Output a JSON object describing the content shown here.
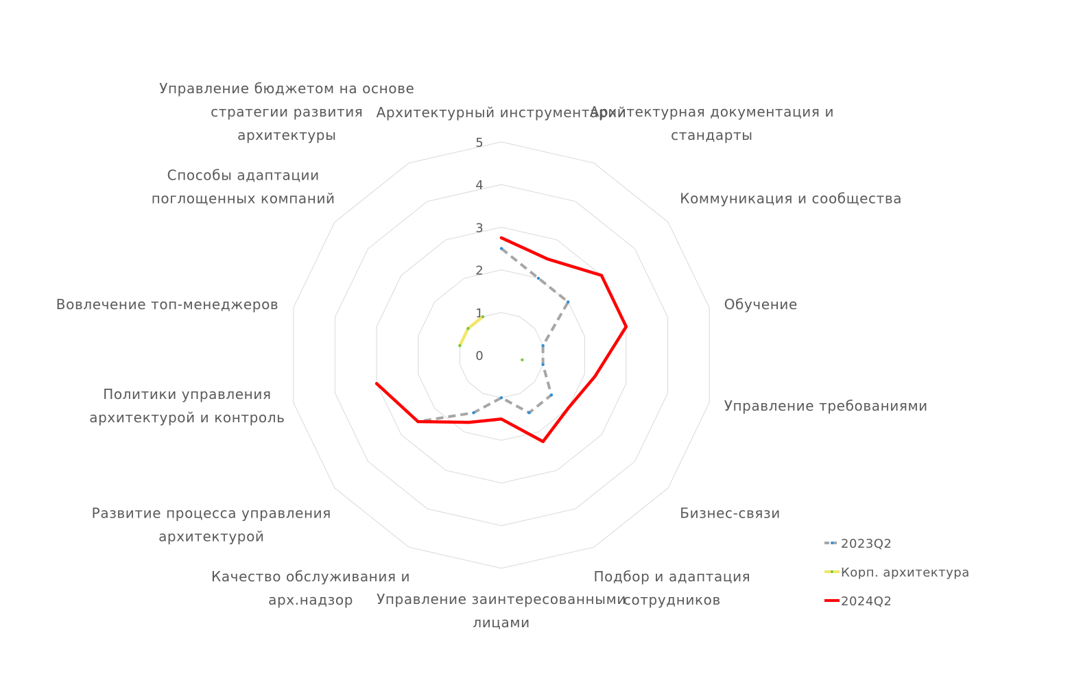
{
  "chart_data": {
    "type": "radar",
    "categories": [
      "Архитектурный инструментарий",
      "Архитектурная документация и стандарты",
      "Коммуникация и сообщества",
      "Обучение",
      "Управление требованиями",
      "Бизнес-связи",
      "Подбор и адаптация сотрудников",
      "Управление заинтересованными лицами",
      "Качество обслуживания и арх.надзор",
      "Развитие процесса управления архитектурой",
      "Политики управления архитектурой и контроль",
      "Вовлечение топ-менеджеров",
      "Способы адаптации поглощенных компаний",
      "Управление бюджетом на основе стратегии развития архитектуры"
    ],
    "category_lines": [
      [
        "Архитектурный инструментарий"
      ],
      [
        "Архитектурная документация и",
        "стандарты"
      ],
      [
        "Коммуникация и сообщества"
      ],
      [
        "Обучение"
      ],
      [
        "Управление требованиями"
      ],
      [
        "Бизнес-связи"
      ],
      [
        "Подбор и адаптация",
        "сотрудников"
      ],
      [
        "Управление заинтересованными",
        "лицами"
      ],
      [
        "Качество обслуживания и",
        "арх.надзор"
      ],
      [
        "Развитие процесса управления",
        "архитектурой"
      ],
      [
        "Политики управления",
        "архитектурой и контроль"
      ],
      [
        "Вовлечение топ-менеджеров"
      ],
      [
        "Способы адаптации",
        "поглощенных компаний"
      ],
      [
        "Управление бюджетом на основе",
        "стратегии развития",
        "архитектуры"
      ]
    ],
    "rlim": [
      0,
      5
    ],
    "ticks": [
      "0",
      "1",
      "2",
      "3",
      "4",
      "5"
    ],
    "grid": true,
    "legend_position": "bottom-right",
    "series": [
      {
        "name": "2023Q2",
        "color": "#a6a6a6",
        "marker_color": "#2e8fd6",
        "dash": true,
        "values": [
          2.5,
          2.0,
          2.0,
          1.0,
          1.0,
          1.5,
          1.5,
          1.0,
          1.5,
          2.5,
          null,
          null,
          null,
          null
        ]
      },
      {
        "name": "Корп. архитектура",
        "color": "#f2e66b",
        "marker_color": "#7ac943",
        "dash": false,
        "values": [
          null,
          null,
          null,
          null,
          0.5,
          null,
          null,
          null,
          null,
          null,
          null,
          1.0,
          1.0,
          1.0
        ]
      },
      {
        "name": "2024Q2",
        "color": "#ff0000",
        "marker_color": "#ff0000",
        "dash": false,
        "values": [
          2.75,
          2.5,
          3.0,
          3.0,
          2.25,
          2.0,
          2.25,
          1.5,
          1.75,
          2.5,
          3.0,
          null,
          null,
          null
        ]
      }
    ]
  }
}
